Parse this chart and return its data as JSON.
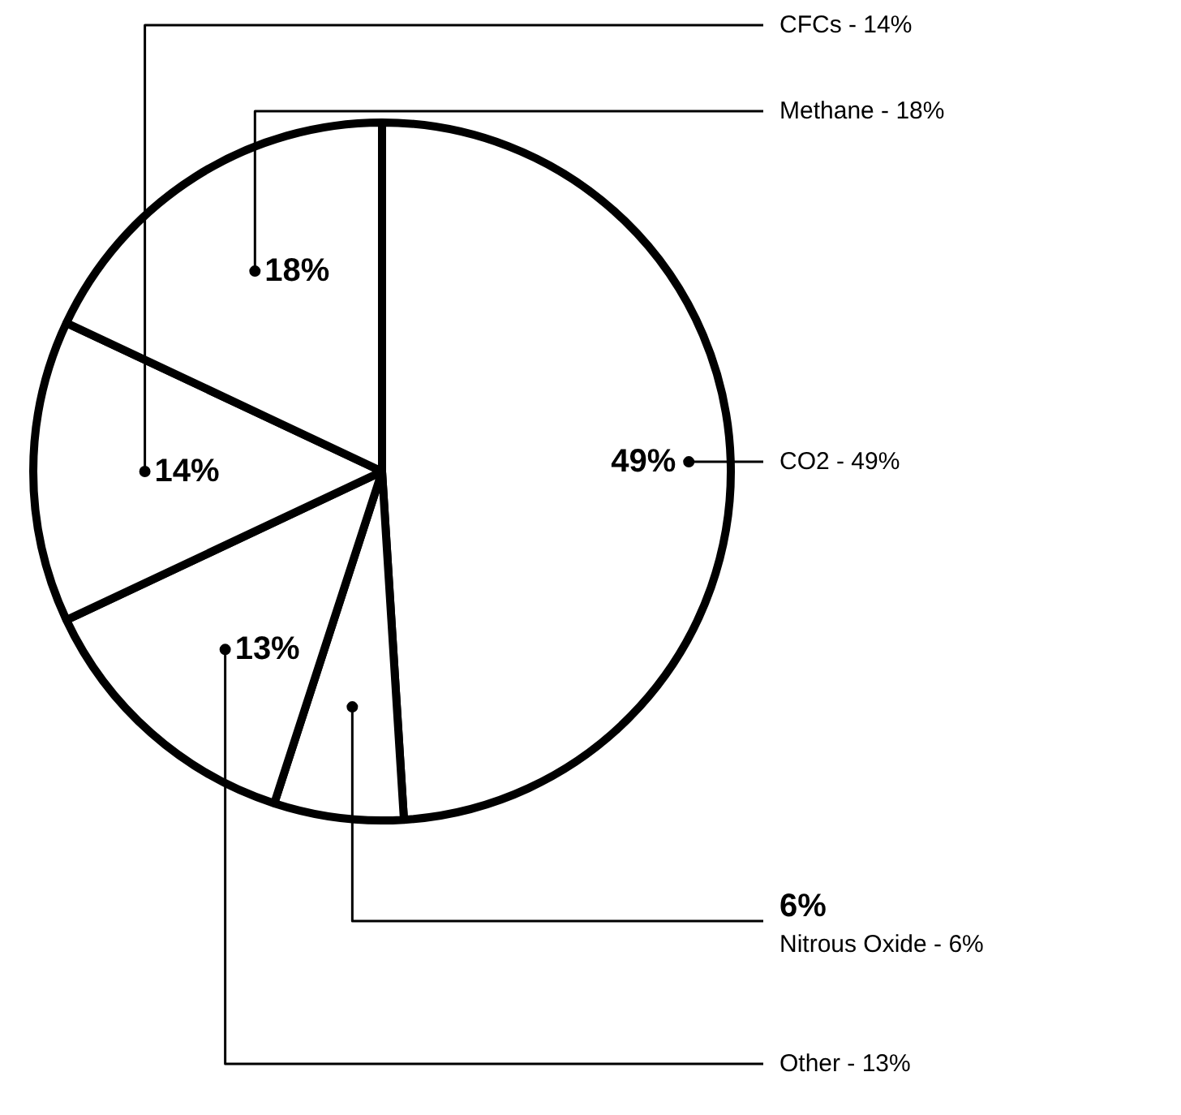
{
  "chart_data": {
    "type": "pie",
    "categories": [
      "CO2 - 49%",
      "Nitrous Oxide - 6%",
      "Other - 13%",
      "CFCs - 14%",
      "Methane - 18%"
    ],
    "values": [
      49,
      6,
      13,
      14,
      18
    ],
    "colors": [
      "#ffffff",
      "#ffffff",
      "#ffffff",
      "#ffffff",
      "#ffffff"
    ],
    "value_labels": [
      "49%",
      "6%",
      "13%",
      "14%",
      "18%"
    ]
  }
}
